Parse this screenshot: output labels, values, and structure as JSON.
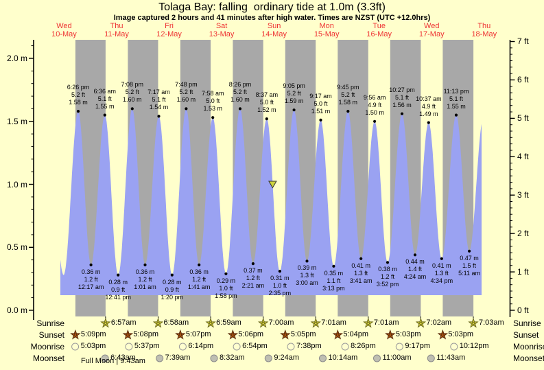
{
  "title": "Tolaga Bay: falling  ordinary tide at 1.0m (3.3ft)",
  "subtitle": "Image captured 2 hours and 41 minutes after high water. Times are NZST (UTC +12.0hrs)",
  "colors": {
    "background": "#ffffcc",
    "night_band": "#a8a8a8",
    "tide_fill": "#9aa2f2",
    "day_label": "#ee3333",
    "axis": "#000000",
    "sunrise_star": "#d8d43c",
    "sunrise_star_edge": "#6d6a1e",
    "sunset_star": "#b55a11",
    "sunset_star_edge": "#56280a",
    "moonrise_fill": "#ffffcf",
    "moonrise_edge": "#9a9a9a",
    "moonset_fill": "#bfbfb2",
    "moonset_edge": "#8a8a8a",
    "capture_marker": "#ccd23c"
  },
  "chart_data": {
    "type": "area",
    "title": "Tolaga Bay: falling  ordinary tide at 1.0m (3.3ft)",
    "subtitle": "Image captured 2 hours and 41 minutes after high water. Times are NZST (UTC +12.0hrs)",
    "unit_left": "m",
    "unit_right": "ft",
    "ylim_m": [
      0,
      2.13
    ],
    "yticks_m_labels": [
      "0.0 m",
      "0.5 m",
      "1.0 m",
      "1.5 m",
      "2.0 m"
    ],
    "yticks_ft_labels": [
      "0 ft",
      "1 ft",
      "2 ft",
      "3 ft",
      "4 ft",
      "5 ft",
      "6 ft",
      "7 ft"
    ],
    "days": [
      {
        "name": "Wed",
        "date": "10-May"
      },
      {
        "name": "Thu",
        "date": "11-May"
      },
      {
        "name": "Fri",
        "date": "12-May"
      },
      {
        "name": "Sat",
        "date": "13-May"
      },
      {
        "name": "Sun",
        "date": "14-May"
      },
      {
        "name": "Mon",
        "date": "15-May"
      },
      {
        "name": "Tue",
        "date": "16-May"
      },
      {
        "name": "Wed",
        "date": "17-May"
      },
      {
        "name": "Thu",
        "date": "18-May"
      }
    ],
    "tide_events": [
      {
        "kind": "high",
        "t": 0.7681,
        "time": "6:26 pm",
        "label_ft": "5.2 ft",
        "label_m": "1.58 m",
        "height_m": 1.58
      },
      {
        "kind": "low",
        "t": 1.0118,
        "time": "12:17 am",
        "label_ft": "1.2 ft",
        "label_m": "0.36 m",
        "height_m": 0.36
      },
      {
        "kind": "high",
        "t": 1.275,
        "time": "6:36 am",
        "label_ft": "5.1 ft",
        "label_m": "1.55 m",
        "height_m": 1.55
      },
      {
        "kind": "low",
        "t": 1.5285,
        "time": "12:41 pm",
        "label_ft": "0.9 ft",
        "label_m": "0.28 m",
        "height_m": 0.28
      },
      {
        "kind": "high",
        "t": 1.7972,
        "time": "7:08 pm",
        "label_ft": "5.2 ft",
        "label_m": "1.60 m",
        "height_m": 1.6
      },
      {
        "kind": "low",
        "t": 2.0424,
        "time": "1:01 am",
        "label_ft": "1.2 ft",
        "label_m": "0.36 m",
        "height_m": 0.36
      },
      {
        "kind": "high",
        "t": 2.3035,
        "time": "7:17 am",
        "label_ft": "5.1 ft",
        "label_m": "1.54 m",
        "height_m": 1.54
      },
      {
        "kind": "low",
        "t": 2.5556,
        "time": "1:20 pm",
        "label_ft": "0.9 ft",
        "label_m": "0.28 m",
        "height_m": 0.28
      },
      {
        "kind": "high",
        "t": 2.825,
        "time": "7:48 pm",
        "label_ft": "5.2 ft",
        "label_m": "1.60 m",
        "height_m": 1.6
      },
      {
        "kind": "low",
        "t": 3.0701,
        "time": "1:41 am",
        "label_ft": "1.2 ft",
        "label_m": "0.36 m",
        "height_m": 0.36
      },
      {
        "kind": "high",
        "t": 3.3319,
        "time": "7:58 am",
        "label_ft": "5.0 ft",
        "label_m": "1.53 m",
        "height_m": 1.53
      },
      {
        "kind": "low",
        "t": 3.5819,
        "time": "1:58 pm",
        "label_ft": "1.0 ft",
        "label_m": "0.29 m",
        "height_m": 0.29
      },
      {
        "kind": "high",
        "t": 3.8514,
        "time": "8:26 pm",
        "label_ft": "5.2 ft",
        "label_m": "1.60 m",
        "height_m": 1.6
      },
      {
        "kind": "low",
        "t": 4.0979,
        "time": "2:21 am",
        "label_ft": "1.2 ft",
        "label_m": "0.37 m",
        "height_m": 0.37
      },
      {
        "kind": "high",
        "t": 4.359,
        "time": "8:37 am",
        "label_ft": "5.0 ft",
        "label_m": "1.52 m",
        "height_m": 1.52
      },
      {
        "kind": "low",
        "t": 4.6076,
        "time": "2:35 pm",
        "label_ft": "1.0 ft",
        "label_m": "0.31 m",
        "height_m": 0.31
      },
      {
        "kind": "high",
        "t": 4.8785,
        "time": "9:05 pm",
        "label_ft": "5.2 ft",
        "label_m": "1.59 m",
        "height_m": 1.59
      },
      {
        "kind": "low",
        "t": 5.125,
        "time": "3:00 am",
        "label_ft": "1.3 ft",
        "label_m": "0.39 m",
        "height_m": 0.39
      },
      {
        "kind": "high",
        "t": 5.3868,
        "time": "9:17 am",
        "label_ft": "5.0 ft",
        "label_m": "1.51 m",
        "height_m": 1.51
      },
      {
        "kind": "low",
        "t": 5.634,
        "time": "3:13 pm",
        "label_ft": "1.1 ft",
        "label_m": "0.35 m",
        "height_m": 0.35
      },
      {
        "kind": "high",
        "t": 5.9063,
        "time": "9:45 pm",
        "label_ft": "5.2 ft",
        "label_m": "1.58 m",
        "height_m": 1.58
      },
      {
        "kind": "low",
        "t": 6.1535,
        "time": "3:41 am",
        "label_ft": "1.3 ft",
        "label_m": "0.41 m",
        "height_m": 0.41
      },
      {
        "kind": "high",
        "t": 6.4139,
        "time": "9:56 am",
        "label_ft": "4.9 ft",
        "label_m": "1.50 m",
        "height_m": 1.5
      },
      {
        "kind": "low",
        "t": 6.6611,
        "time": "3:52 pm",
        "label_ft": "1.2 ft",
        "label_m": "0.38 m",
        "height_m": 0.38
      },
      {
        "kind": "high",
        "t": 6.9354,
        "time": "10:27 pm",
        "label_ft": "5.1 ft",
        "label_m": "1.56 m",
        "height_m": 1.56
      },
      {
        "kind": "low",
        "t": 7.1833,
        "time": "4:24 am",
        "label_ft": "1.4 ft",
        "label_m": "0.44 m",
        "height_m": 0.44
      },
      {
        "kind": "high",
        "t": 7.4424,
        "time": "10:37 am",
        "label_ft": "4.9 ft",
        "label_m": "1.49 m",
        "height_m": 1.49
      },
      {
        "kind": "low",
        "t": 7.6903,
        "time": "4:34 pm",
        "label_ft": "1.3 ft",
        "label_m": "0.41 m",
        "height_m": 0.41
      },
      {
        "kind": "high",
        "t": 7.9674,
        "time": "11:13 pm",
        "label_ft": "5.1 ft",
        "label_m": "1.55 m",
        "height_m": 1.55
      },
      {
        "kind": "low",
        "t": 8.216,
        "time": "5:11 am",
        "label_ft": "1.5 ft",
        "label_m": "0.47 m",
        "height_m": 0.47
      }
    ],
    "capture_marker": {
      "t": 4.4707,
      "height_m": 1.0
    }
  },
  "astro": {
    "row_labels": [
      "Sunrise",
      "Sunset",
      "Moonrise",
      "Moonset"
    ],
    "sunrise": [
      {
        "day": 1,
        "time": "6:57am",
        "t": 1.2896
      },
      {
        "day": 2,
        "time": "6:58am",
        "t": 2.2903
      },
      {
        "day": 3,
        "time": "6:59am",
        "t": 3.291
      },
      {
        "day": 4,
        "time": "7:00am",
        "t": 4.2917
      },
      {
        "day": 5,
        "time": "7:01am",
        "t": 5.2924
      },
      {
        "day": 6,
        "time": "7:01am",
        "t": 6.2924
      },
      {
        "day": 7,
        "time": "7:02am",
        "t": 7.2931
      },
      {
        "day": 8,
        "time": "7:03am",
        "t": 8.2938
      }
    ],
    "sunset": [
      {
        "day": 0,
        "time": "5:09pm",
        "t": 0.7146
      },
      {
        "day": 1,
        "time": "5:08pm",
        "t": 1.7139
      },
      {
        "day": 2,
        "time": "5:07pm",
        "t": 2.7132
      },
      {
        "day": 3,
        "time": "5:06pm",
        "t": 3.7125
      },
      {
        "day": 4,
        "time": "5:05pm",
        "t": 4.7118
      },
      {
        "day": 5,
        "time": "5:04pm",
        "t": 5.7111
      },
      {
        "day": 6,
        "time": "5:03pm",
        "t": 6.7104
      },
      {
        "day": 7,
        "time": "5:03pm",
        "t": 7.7104
      }
    ],
    "moonrise": [
      {
        "day": 0,
        "time": "5:03pm",
        "t": 0.7104
      },
      {
        "day": 1,
        "time": "5:37pm",
        "t": 1.734
      },
      {
        "day": 2,
        "time": "6:14pm",
        "t": 2.7597
      },
      {
        "day": 3,
        "time": "6:54pm",
        "t": 3.7875
      },
      {
        "day": 4,
        "time": "7:38pm",
        "t": 4.8181
      },
      {
        "day": 5,
        "time": "8:26pm",
        "t": 5.8514
      },
      {
        "day": 6,
        "time": "9:17pm",
        "t": 6.8868
      },
      {
        "day": 7,
        "time": "10:12pm",
        "t": 7.925
      }
    ],
    "moonset": [
      {
        "day": 1,
        "time": "6:43am",
        "t": 1.2799
      },
      {
        "day": 2,
        "time": "7:39am",
        "t": 2.3188
      },
      {
        "day": 3,
        "time": "8:32am",
        "t": 3.3556
      },
      {
        "day": 4,
        "time": "9:24am",
        "t": 4.3917
      },
      {
        "day": 5,
        "time": "10:14am",
        "t": 5.4264
      },
      {
        "day": 6,
        "time": "11:00am",
        "t": 6.4583
      },
      {
        "day": 7,
        "time": "11:43am",
        "t": 7.4882
      }
    ],
    "footer": "Full Moon | 9:43am"
  }
}
